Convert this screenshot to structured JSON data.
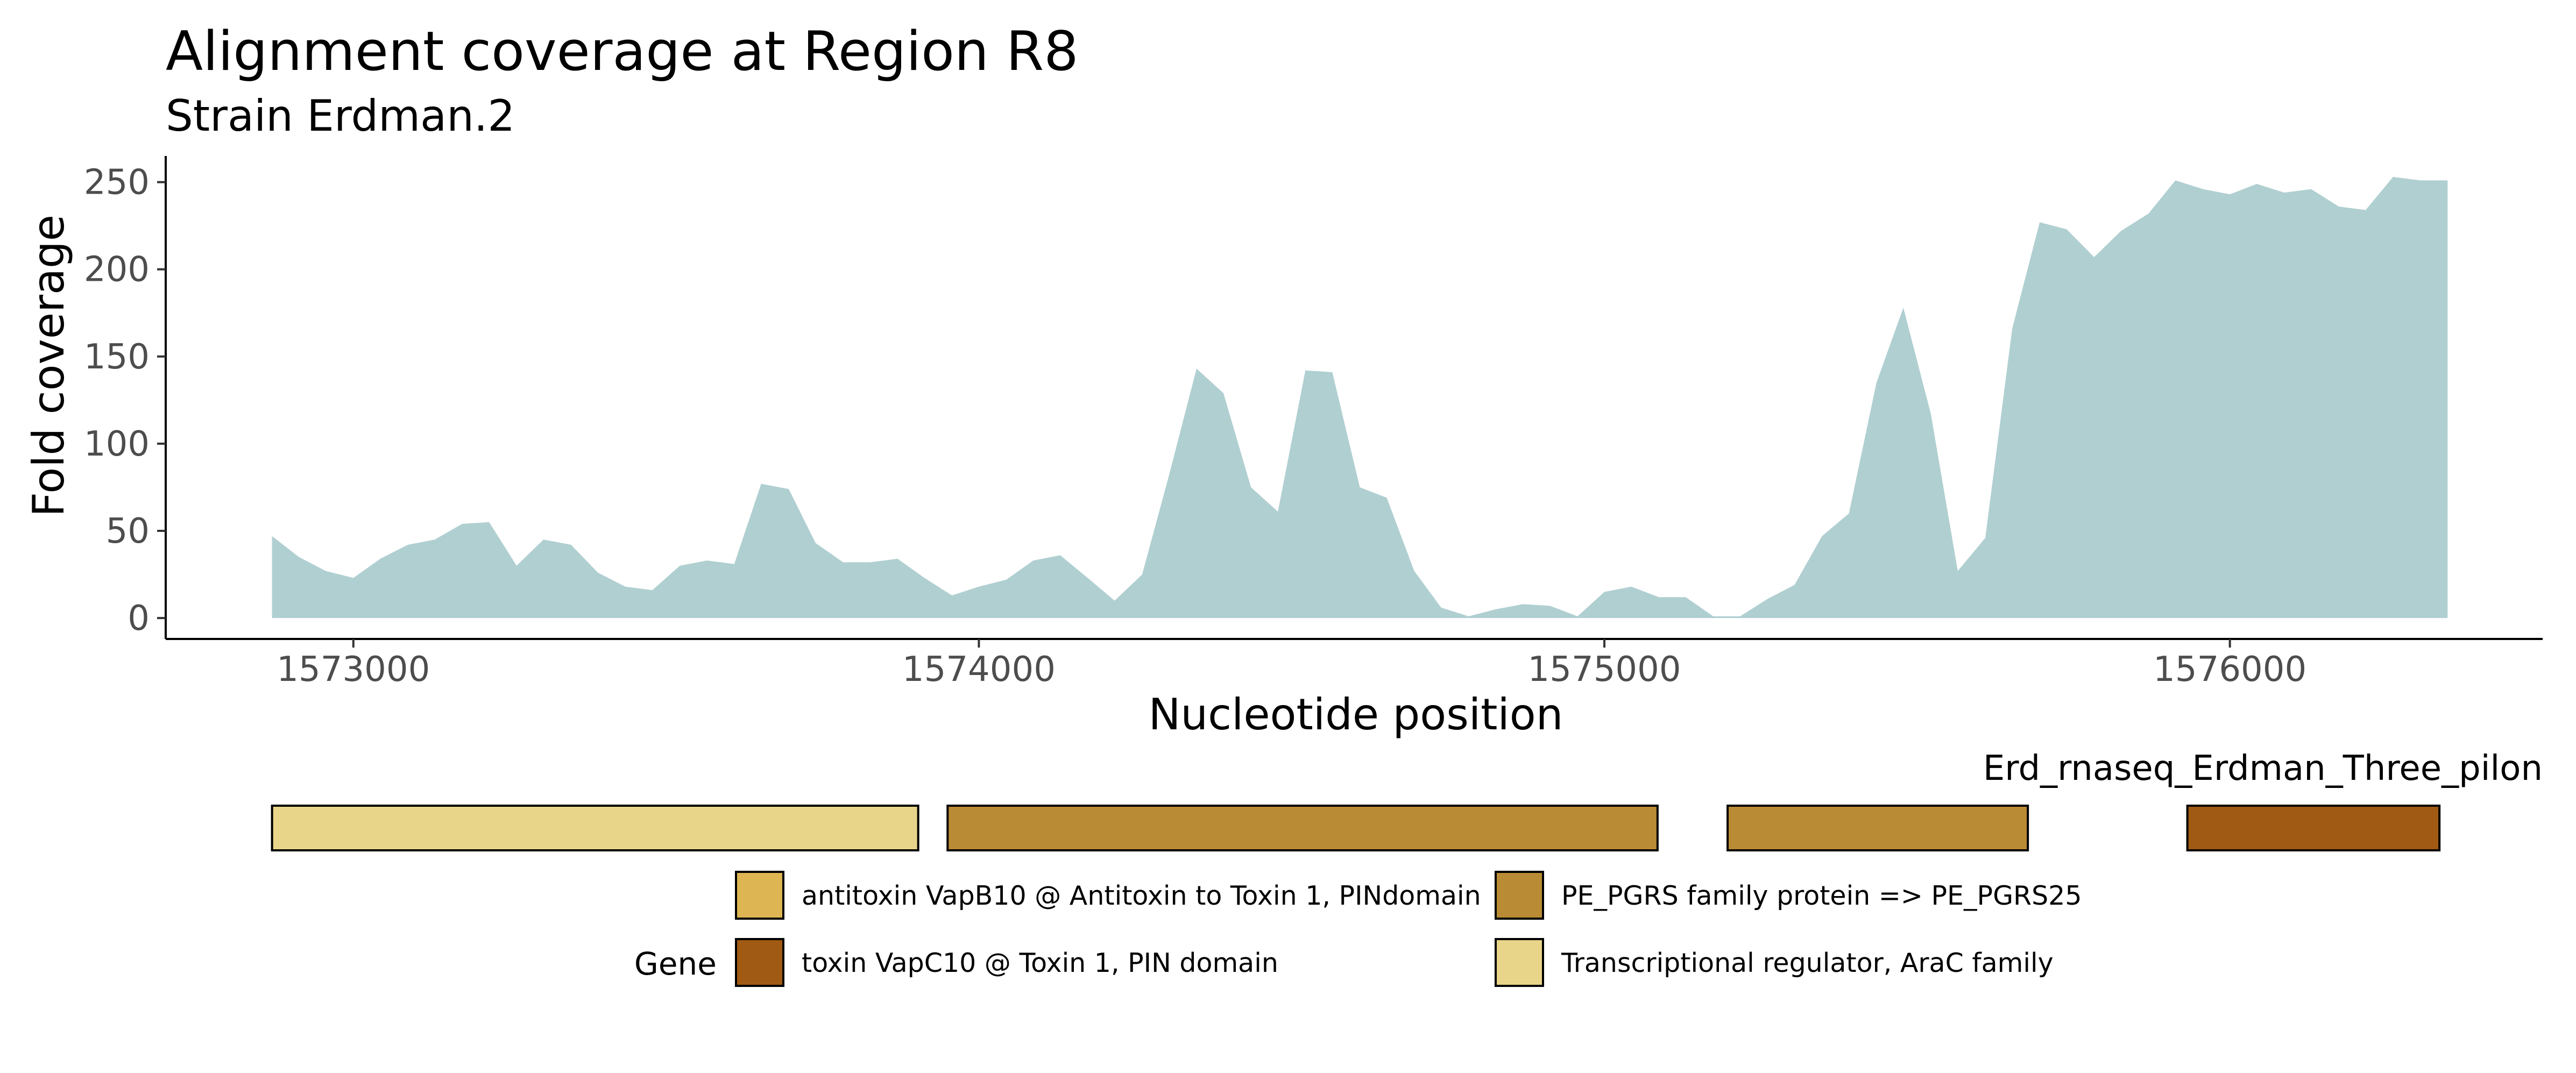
{
  "chart_data": {
    "type": "area",
    "title": "Alignment coverage at Region R8",
    "subtitle": "Strain Erdman.2",
    "xlabel": "Nucleotide position",
    "ylabel": "Fold coverage",
    "xlim": [
      1572700,
      1576500
    ],
    "ylim": [
      -12,
      265
    ],
    "x_ticks": [
      1573000,
      1574000,
      1575000,
      1576000
    ],
    "y_ticks": [
      0,
      50,
      100,
      150,
      200,
      250
    ],
    "series": [
      {
        "color": "#b0cfd1",
        "x": [
          1572870,
          1572913,
          1572956,
          1573000,
          1573043,
          1573087,
          1573130,
          1573174,
          1573217,
          1573261,
          1573304,
          1573348,
          1573391,
          1573435,
          1573478,
          1573522,
          1573565,
          1573609,
          1573652,
          1573696,
          1573739,
          1573783,
          1573826,
          1573870,
          1573913,
          1573957,
          1574000,
          1574044,
          1574087,
          1574130,
          1574174,
          1574217,
          1574261,
          1574304,
          1574348,
          1574391,
          1574435,
          1574478,
          1574522,
          1574565,
          1574609,
          1574652,
          1574696,
          1574739,
          1574783,
          1574826,
          1574870,
          1574913,
          1574957,
          1575000,
          1575043,
          1575087,
          1575130,
          1575174,
          1575217,
          1575261,
          1575304,
          1575348,
          1575391,
          1575435,
          1575478,
          1575522,
          1575565,
          1575609,
          1575652,
          1575696,
          1575739,
          1575783,
          1575826,
          1575870,
          1575913,
          1575957,
          1576000,
          1576043,
          1576087,
          1576130,
          1576174,
          1576217,
          1576261,
          1576304,
          1576348
        ],
        "values": [
          47,
          35,
          27,
          23,
          34,
          42,
          45,
          54,
          55,
          30,
          45,
          42,
          26,
          18,
          16,
          30,
          33,
          31,
          77,
          74,
          43,
          32,
          32,
          34,
          23,
          13,
          18,
          22,
          33,
          36,
          23,
          10,
          25,
          82,
          143,
          129,
          75,
          61,
          142,
          141,
          75,
          69,
          27,
          6,
          1,
          5,
          8,
          7,
          1,
          15,
          18,
          12,
          12,
          1,
          1,
          11,
          19,
          47,
          60,
          135,
          178,
          117,
          27,
          46,
          166,
          227,
          223,
          207,
          222,
          232,
          251,
          246,
          243,
          249,
          244,
          246,
          236,
          234,
          253,
          251,
          251
        ]
      }
    ],
    "gene_track": {
      "label": "Erd_rnaseq_Erdman_Three_pilon",
      "genes": [
        {
          "start": 1572870,
          "end": 1573903,
          "color": "#e8d58a"
        },
        {
          "start": 1573950,
          "end": 1575085,
          "color": "#ba8b35"
        },
        {
          "start": 1575197,
          "end": 1575677,
          "color": "#ba8b35"
        },
        {
          "start": 1575932,
          "end": 1576335,
          "color": "#a05a13"
        }
      ]
    },
    "legend": {
      "title": "Gene",
      "placement": "bottom",
      "items": [
        {
          "label": "antitoxin VapB10 @ Antitoxin to Toxin 1, PINdomain",
          "color": "#deb553"
        },
        {
          "label": "PE_PGRS family protein => PE_PGRS25",
          "color": "#ba8b35"
        },
        {
          "label": "toxin VapC10 @ Toxin 1, PIN domain",
          "color": "#a05a13"
        },
        {
          "label": "Transcriptional regulator, AraC family",
          "color": "#e8d58a"
        }
      ]
    }
  }
}
